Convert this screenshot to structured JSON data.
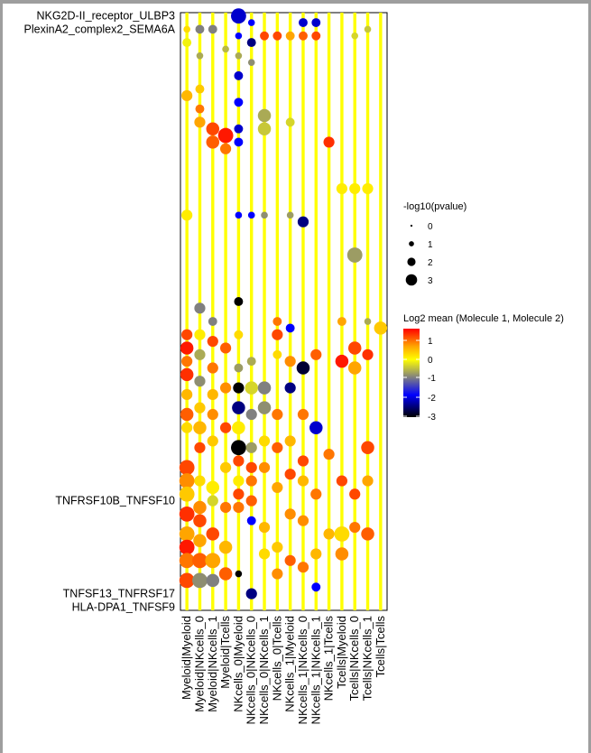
{
  "chart_data": {
    "type": "dotplot",
    "x_categories": [
      "Myeloid|Myeloid",
      "Myeloid|NKcells_0",
      "Myeloid|NKcells_1",
      "Myeloid|Tcells",
      "NKcells_0|Myeloid",
      "NKcells_0|NKcells_0",
      "NKcells_0|NKcells_1",
      "NKcells_0|Tcells",
      "NKcells_1|Myeloid",
      "NKcells_1|NKcells_0",
      "NKcells_1|NKcells_1",
      "NKcells_1|Tcells",
      "Tcells|Myeloid",
      "Tcells|NKcells_0",
      "Tcells|NKcells_1",
      "Tcells|Tcells"
    ],
    "y_labels_top_legible": [
      "NKG2D-II_receptor_ULBP3",
      "PlexinA2_complex2_SEMA6A"
    ],
    "y_labels_bottom_legible": [
      "TNFSF13_TNFRSF17",
      "HLA-DPA1_TNFSF9"
    ],
    "y_labels_middle_legible": [
      "TNFRSF10B_TNFSF10"
    ],
    "size_legend": {
      "title": "-log10(pvalue)",
      "levels": [
        0,
        1,
        2,
        3
      ]
    },
    "color_legend": {
      "title": "Log2 mean (Molecule 1, Molecule 2)",
      "ticks": [
        1,
        0,
        -1,
        -2,
        -3
      ],
      "colors": [
        "#ff0000",
        "#ffa500",
        "#ffff00",
        "#808080",
        "#0000ff",
        "#000000"
      ]
    },
    "points": [
      {
        "x": 0,
        "row": 2,
        "v": 0.3,
        "s": 1
      },
      {
        "x": 0,
        "row": 4,
        "v": 0.0,
        "s": 1.5
      },
      {
        "x": 0,
        "row": 12,
        "v": 0.5,
        "s": 2
      },
      {
        "x": 0,
        "row": 30,
        "v": 0.2,
        "s": 2
      },
      {
        "x": 0,
        "row": 48,
        "v": 1.0,
        "s": 2
      },
      {
        "x": 0,
        "row": 50,
        "v": 1.2,
        "s": 2.5
      },
      {
        "x": 0,
        "row": 52,
        "v": 0.8,
        "s": 2
      },
      {
        "x": 0,
        "row": 54,
        "v": 1.1,
        "s": 2.5
      },
      {
        "x": 0,
        "row": 57,
        "v": 0.5,
        "s": 2
      },
      {
        "x": 0,
        "row": 60,
        "v": 0.9,
        "s": 2.5
      },
      {
        "x": 0,
        "row": 62,
        "v": 0.3,
        "s": 2
      },
      {
        "x": 0,
        "row": 68,
        "v": 1.0,
        "s": 3
      },
      {
        "x": 0,
        "row": 70,
        "v": 0.7,
        "s": 3
      },
      {
        "x": 0,
        "row": 72,
        "v": 0.4,
        "s": 3
      },
      {
        "x": 0,
        "row": 75,
        "v": 1.1,
        "s": 3
      },
      {
        "x": 0,
        "row": 78,
        "v": 0.6,
        "s": 3
      },
      {
        "x": 0,
        "row": 80,
        "v": 1.2,
        "s": 3
      },
      {
        "x": 0,
        "row": 82,
        "v": 0.8,
        "s": 3
      },
      {
        "x": 0,
        "row": 85,
        "v": 1.0,
        "s": 3
      },
      {
        "x": 1,
        "row": 2,
        "v": -0.8,
        "s": 1.5
      },
      {
        "x": 1,
        "row": 6,
        "v": -0.5,
        "s": 1
      },
      {
        "x": 1,
        "row": 11,
        "v": 0.4,
        "s": 1.5
      },
      {
        "x": 1,
        "row": 14,
        "v": 0.8,
        "s": 1.5
      },
      {
        "x": 1,
        "row": 16,
        "v": 0.6,
        "s": 2
      },
      {
        "x": 1,
        "row": 44,
        "v": -0.8,
        "s": 2
      },
      {
        "x": 1,
        "row": 48,
        "v": 0.2,
        "s": 2
      },
      {
        "x": 1,
        "row": 51,
        "v": -0.5,
        "s": 2
      },
      {
        "x": 1,
        "row": 55,
        "v": -0.7,
        "s": 2
      },
      {
        "x": 1,
        "row": 59,
        "v": 0.4,
        "s": 2
      },
      {
        "x": 1,
        "row": 62,
        "v": 0.5,
        "s": 2.5
      },
      {
        "x": 1,
        "row": 65,
        "v": 1.0,
        "s": 2
      },
      {
        "x": 1,
        "row": 70,
        "v": 0.3,
        "s": 2
      },
      {
        "x": 1,
        "row": 74,
        "v": 0.7,
        "s": 2.5
      },
      {
        "x": 1,
        "row": 76,
        "v": 1.0,
        "s": 2.5
      },
      {
        "x": 1,
        "row": 79,
        "v": 0.6,
        "s": 2.5
      },
      {
        "x": 1,
        "row": 82,
        "v": 0.9,
        "s": 3
      },
      {
        "x": 1,
        "row": 85,
        "v": -0.7,
        "s": 3
      },
      {
        "x": 2,
        "row": 2,
        "v": -0.8,
        "s": 1.5
      },
      {
        "x": 2,
        "row": 17,
        "v": 1.0,
        "s": 2.5
      },
      {
        "x": 2,
        "row": 19,
        "v": 0.9,
        "s": 2.5
      },
      {
        "x": 2,
        "row": 46,
        "v": -0.8,
        "s": 1.5
      },
      {
        "x": 2,
        "row": 49,
        "v": 1.0,
        "s": 2
      },
      {
        "x": 2,
        "row": 53,
        "v": 0.8,
        "s": 2
      },
      {
        "x": 2,
        "row": 57,
        "v": 0.5,
        "s": 2
      },
      {
        "x": 2,
        "row": 60,
        "v": 0.7,
        "s": 2
      },
      {
        "x": 2,
        "row": 64,
        "v": 0.4,
        "s": 2
      },
      {
        "x": 2,
        "row": 71,
        "v": 0.2,
        "s": 2.5
      },
      {
        "x": 2,
        "row": 73,
        "v": -0.2,
        "s": 2
      },
      {
        "x": 2,
        "row": 78,
        "v": 1.0,
        "s": 2.5
      },
      {
        "x": 2,
        "row": 82,
        "v": 0.6,
        "s": 3
      },
      {
        "x": 2,
        "row": 85,
        "v": -0.8,
        "s": 2.5
      },
      {
        "x": 3,
        "row": 5,
        "v": -0.4,
        "s": 1
      },
      {
        "x": 3,
        "row": 18,
        "v": 1.2,
        "s": 3
      },
      {
        "x": 3,
        "row": 20,
        "v": 0.8,
        "s": 2
      },
      {
        "x": 3,
        "row": 50,
        "v": 0.9,
        "s": 2
      },
      {
        "x": 3,
        "row": 56,
        "v": 0.7,
        "s": 2
      },
      {
        "x": 3,
        "row": 62,
        "v": 1.0,
        "s": 2
      },
      {
        "x": 3,
        "row": 68,
        "v": 0.4,
        "s": 2
      },
      {
        "x": 3,
        "row": 74,
        "v": 0.8,
        "s": 2
      },
      {
        "x": 3,
        "row": 80,
        "v": 0.5,
        "s": 2.5
      },
      {
        "x": 3,
        "row": 84,
        "v": 0.9,
        "s": 2.5
      },
      {
        "x": 4,
        "row": 0,
        "v": -2.2,
        "s": 3
      },
      {
        "x": 4,
        "row": 3,
        "v": -2.0,
        "s": 1
      },
      {
        "x": 4,
        "row": 6,
        "v": -0.5,
        "s": 1
      },
      {
        "x": 4,
        "row": 9,
        "v": -2.2,
        "s": 1.5
      },
      {
        "x": 4,
        "row": 13,
        "v": -2.0,
        "s": 1.5
      },
      {
        "x": 4,
        "row": 17,
        "v": -2.2,
        "s": 1.5
      },
      {
        "x": 4,
        "row": 19,
        "v": -2.0,
        "s": 1.5
      },
      {
        "x": 4,
        "row": 30,
        "v": -2.0,
        "s": 1
      },
      {
        "x": 4,
        "row": 43,
        "v": -3.0,
        "s": 1.5
      },
      {
        "x": 4,
        "row": 48,
        "v": 0.3,
        "s": 1.5
      },
      {
        "x": 4,
        "row": 53,
        "v": -0.6,
        "s": 1.5
      },
      {
        "x": 4,
        "row": 56,
        "v": -3.0,
        "s": 2
      },
      {
        "x": 4,
        "row": 59,
        "v": -2.5,
        "s": 2.5
      },
      {
        "x": 4,
        "row": 62,
        "v": 0.2,
        "s": 2.5
      },
      {
        "x": 4,
        "row": 65,
        "v": -3.0,
        "s": 3
      },
      {
        "x": 4,
        "row": 67,
        "v": 1.0,
        "s": 2
      },
      {
        "x": 4,
        "row": 70,
        "v": 0.2,
        "s": 2
      },
      {
        "x": 4,
        "row": 72,
        "v": 1.0,
        "s": 2
      },
      {
        "x": 4,
        "row": 74,
        "v": 0.8,
        "s": 2
      },
      {
        "x": 4,
        "row": 84,
        "v": -3.0,
        "s": 1
      },
      {
        "x": 5,
        "row": 1,
        "v": -2.0,
        "s": 1
      },
      {
        "x": 5,
        "row": 4,
        "v": -2.5,
        "s": 1.5
      },
      {
        "x": 5,
        "row": 7,
        "v": -0.7,
        "s": 1
      },
      {
        "x": 5,
        "row": 30,
        "v": -2.0,
        "s": 1
      },
      {
        "x": 5,
        "row": 52,
        "v": -0.5,
        "s": 1.5
      },
      {
        "x": 5,
        "row": 56,
        "v": -0.2,
        "s": 2.5
      },
      {
        "x": 5,
        "row": 60,
        "v": -0.8,
        "s": 2
      },
      {
        "x": 5,
        "row": 65,
        "v": -0.6,
        "s": 2
      },
      {
        "x": 5,
        "row": 68,
        "v": 1.0,
        "s": 2
      },
      {
        "x": 5,
        "row": 70,
        "v": 0.8,
        "s": 2
      },
      {
        "x": 5,
        "row": 73,
        "v": 0.9,
        "s": 2
      },
      {
        "x": 5,
        "row": 76,
        "v": -2.0,
        "s": 1.5
      },
      {
        "x": 5,
        "row": 87,
        "v": -2.5,
        "s": 2
      },
      {
        "x": 6,
        "row": 3,
        "v": 1.0,
        "s": 1.5
      },
      {
        "x": 6,
        "row": 15,
        "v": -0.5,
        "s": 2.5
      },
      {
        "x": 6,
        "row": 17,
        "v": -0.3,
        "s": 2.5
      },
      {
        "x": 6,
        "row": 30,
        "v": -0.7,
        "s": 1
      },
      {
        "x": 6,
        "row": 56,
        "v": -0.8,
        "s": 2.5
      },
      {
        "x": 6,
        "row": 59,
        "v": -0.7,
        "s": 2.5
      },
      {
        "x": 6,
        "row": 64,
        "v": 0.3,
        "s": 2
      },
      {
        "x": 6,
        "row": 68,
        "v": 0.7,
        "s": 2
      },
      {
        "x": 6,
        "row": 77,
        "v": 0.5,
        "s": 2
      },
      {
        "x": 6,
        "row": 81,
        "v": 0.3,
        "s": 2
      },
      {
        "x": 7,
        "row": 3,
        "v": 1.0,
        "s": 1.5
      },
      {
        "x": 7,
        "row": 46,
        "v": 0.8,
        "s": 1.5
      },
      {
        "x": 7,
        "row": 48,
        "v": 1.0,
        "s": 2
      },
      {
        "x": 7,
        "row": 51,
        "v": 0.3,
        "s": 1.5
      },
      {
        "x": 7,
        "row": 60,
        "v": 0.8,
        "s": 2
      },
      {
        "x": 7,
        "row": 65,
        "v": 0.9,
        "s": 2
      },
      {
        "x": 7,
        "row": 71,
        "v": 0.6,
        "s": 2
      },
      {
        "x": 7,
        "row": 80,
        "v": 0.4,
        "s": 2
      },
      {
        "x": 7,
        "row": 84,
        "v": 0.7,
        "s": 2
      },
      {
        "x": 8,
        "row": 3,
        "v": 0.6,
        "s": 1.5
      },
      {
        "x": 8,
        "row": 16,
        "v": -0.2,
        "s": 1.5
      },
      {
        "x": 8,
        "row": 30,
        "v": -0.6,
        "s": 1
      },
      {
        "x": 8,
        "row": 47,
        "v": -2.0,
        "s": 1.5
      },
      {
        "x": 8,
        "row": 52,
        "v": 0.7,
        "s": 2
      },
      {
        "x": 8,
        "row": 56,
        "v": -2.5,
        "s": 2
      },
      {
        "x": 8,
        "row": 64,
        "v": 0.5,
        "s": 2
      },
      {
        "x": 8,
        "row": 69,
        "v": 1.0,
        "s": 2
      },
      {
        "x": 8,
        "row": 75,
        "v": 0.7,
        "s": 2
      },
      {
        "x": 8,
        "row": 82,
        "v": 0.9,
        "s": 2
      },
      {
        "x": 9,
        "row": 1,
        "v": -2.2,
        "s": 1.5
      },
      {
        "x": 9,
        "row": 3,
        "v": 0.9,
        "s": 1.5
      },
      {
        "x": 9,
        "row": 31,
        "v": -2.5,
        "s": 2
      },
      {
        "x": 9,
        "row": 53,
        "v": -2.8,
        "s": 2.5
      },
      {
        "x": 9,
        "row": 60,
        "v": 0.8,
        "s": 2
      },
      {
        "x": 9,
        "row": 67,
        "v": 1.0,
        "s": 2
      },
      {
        "x": 9,
        "row": 70,
        "v": 0.5,
        "s": 2
      },
      {
        "x": 9,
        "row": 76,
        "v": 0.7,
        "s": 2
      },
      {
        "x": 9,
        "row": 83,
        "v": 0.8,
        "s": 2
      },
      {
        "x": 10,
        "row": 1,
        "v": -2.2,
        "s": 1.5
      },
      {
        "x": 10,
        "row": 3,
        "v": 1.0,
        "s": 1.5
      },
      {
        "x": 10,
        "row": 51,
        "v": 0.9,
        "s": 2
      },
      {
        "x": 10,
        "row": 62,
        "v": -2.2,
        "s": 2.5
      },
      {
        "x": 10,
        "row": 72,
        "v": 0.8,
        "s": 2
      },
      {
        "x": 10,
        "row": 81,
        "v": 0.5,
        "s": 2
      },
      {
        "x": 10,
        "row": 86,
        "v": -2.0,
        "s": 1.5
      },
      {
        "x": 11,
        "row": 19,
        "v": 1.1,
        "s": 2
      },
      {
        "x": 11,
        "row": 66,
        "v": 0.8,
        "s": 2
      },
      {
        "x": 11,
        "row": 78,
        "v": 0.5,
        "s": 2
      },
      {
        "x": 12,
        "row": 26,
        "v": 0.2,
        "s": 2
      },
      {
        "x": 12,
        "row": 46,
        "v": 0.6,
        "s": 1.5
      },
      {
        "x": 12,
        "row": 52,
        "v": 1.2,
        "s": 2.5
      },
      {
        "x": 12,
        "row": 70,
        "v": 1.0,
        "s": 2
      },
      {
        "x": 12,
        "row": 78,
        "v": 0.3,
        "s": 3
      },
      {
        "x": 12,
        "row": 81,
        "v": 0.7,
        "s": 2.5
      },
      {
        "x": 13,
        "row": 3,
        "v": -0.2,
        "s": 1
      },
      {
        "x": 13,
        "row": 26,
        "v": 0.2,
        "s": 2
      },
      {
        "x": 13,
        "row": 36,
        "v": -0.6,
        "s": 3
      },
      {
        "x": 13,
        "row": 50,
        "v": 1.0,
        "s": 2.5
      },
      {
        "x": 13,
        "row": 53,
        "v": 0.6,
        "s": 2.5
      },
      {
        "x": 13,
        "row": 72,
        "v": 1.0,
        "s": 2
      },
      {
        "x": 13,
        "row": 77,
        "v": 0.8,
        "s": 2
      },
      {
        "x": 14,
        "row": 2,
        "v": -0.3,
        "s": 1
      },
      {
        "x": 14,
        "row": 26,
        "v": 0.2,
        "s": 2
      },
      {
        "x": 14,
        "row": 46,
        "v": -0.5,
        "s": 1
      },
      {
        "x": 14,
        "row": 51,
        "v": 1.1,
        "s": 2
      },
      {
        "x": 14,
        "row": 65,
        "v": 1.0,
        "s": 2.5
      },
      {
        "x": 14,
        "row": 70,
        "v": 0.6,
        "s": 2
      },
      {
        "x": 14,
        "row": 78,
        "v": 0.9,
        "s": 2.5
      },
      {
        "x": 15,
        "row": 47,
        "v": 0.4,
        "s": 2.5
      }
    ]
  }
}
